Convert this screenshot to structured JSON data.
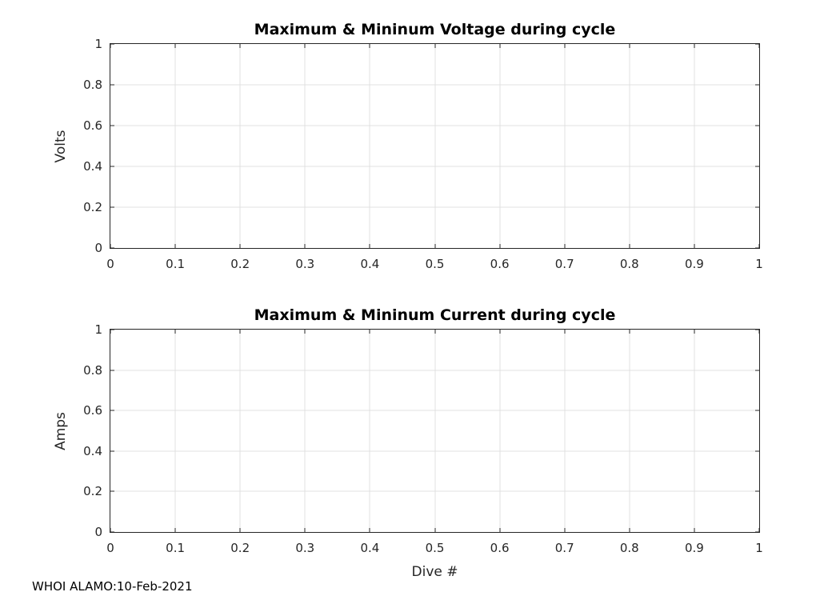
{
  "figure": {
    "background": "#ffffff"
  },
  "colors": {
    "axis": "#262626",
    "grid": "#e0e0e0",
    "title": "#000000"
  },
  "footer": {
    "text": "WHOI ALAMO:10-Feb-2021"
  },
  "chart_data": [
    {
      "type": "line",
      "title": "Maximum & Mininum Voltage during cycle",
      "xlabel": "",
      "ylabel": "Volts",
      "xlim": [
        0,
        1
      ],
      "ylim": [
        0,
        1
      ],
      "x_ticks": [
        0,
        0.1,
        0.2,
        0.3,
        0.4,
        0.5,
        0.6,
        0.7,
        0.8,
        0.9,
        1
      ],
      "x_tick_labels": [
        "0",
        "0.1",
        "0.2",
        "0.3",
        "0.4",
        "0.5",
        "0.6",
        "0.7",
        "0.8",
        "0.9",
        "1"
      ],
      "y_ticks": [
        0,
        0.2,
        0.4,
        0.6,
        0.8,
        1
      ],
      "y_tick_labels": [
        "0",
        "0.2",
        "0.4",
        "0.6",
        "0.8",
        "1"
      ],
      "grid": true,
      "legend": "none",
      "series": []
    },
    {
      "type": "line",
      "title": "Maximum & Mininum Current during cycle",
      "xlabel": "Dive #",
      "ylabel": "Amps",
      "xlim": [
        0,
        1
      ],
      "ylim": [
        0,
        1
      ],
      "x_ticks": [
        0,
        0.1,
        0.2,
        0.3,
        0.4,
        0.5,
        0.6,
        0.7,
        0.8,
        0.9,
        1
      ],
      "x_tick_labels": [
        "0",
        "0.1",
        "0.2",
        "0.3",
        "0.4",
        "0.5",
        "0.6",
        "0.7",
        "0.8",
        "0.9",
        "1"
      ],
      "y_ticks": [
        0,
        0.2,
        0.4,
        0.6,
        0.8,
        1
      ],
      "y_tick_labels": [
        "0",
        "0.2",
        "0.4",
        "0.6",
        "0.8",
        "1"
      ],
      "grid": true,
      "legend": "none",
      "series": []
    }
  ]
}
